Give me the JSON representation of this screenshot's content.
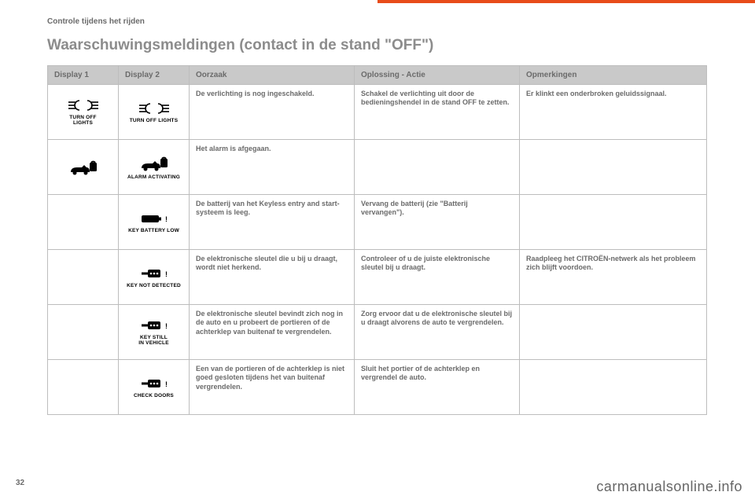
{
  "section_label": "Controle tijdens het rijden",
  "title": "Waarschuwingsmeldingen (contact in de stand \"OFF\")",
  "columns": [
    "Display 1",
    "Display 2",
    "Oorzaak",
    "Oplossing - Actie",
    "Opmerkingen"
  ],
  "page_number": "32",
  "watermark": "carmanualsonline.info",
  "rows": [
    {
      "d1": {
        "icon": "lights",
        "label": "TURN OFF\nLIGHTS"
      },
      "d2": {
        "icon": "lights",
        "label": "TURN OFF LIGHTS"
      },
      "cause": "De verlichting is nog ingeschakeld.",
      "solution": "Schakel de verlichting uit door de bedieningshendel in de stand OFF te zetten.",
      "remarks": "Er klinkt een onderbroken geluidssignaal."
    },
    {
      "d1": {
        "icon": "alarm",
        "label": ""
      },
      "d2": {
        "icon": "alarm",
        "label": "ALARM ACTIVATING"
      },
      "cause": "Het alarm is afgegaan.",
      "solution": "",
      "remarks": ""
    },
    {
      "d1": null,
      "d2": {
        "icon": "keybatt",
        "label": "KEY BATTERY LOW"
      },
      "cause": "De batterij van het Keyless entry and start-systeem is leeg.",
      "solution": "Vervang de batterij (zie \"Batterij vervangen\").",
      "remarks": ""
    },
    {
      "d1": null,
      "d2": {
        "icon": "keyfob",
        "label": "KEY NOT DETECTED"
      },
      "cause": "De elektronische sleutel die u bij u draagt, wordt niet herkend.",
      "solution": "Controleer of u de juiste elektronische sleutel bij u draagt.",
      "remarks": "Raadpleeg het CITROËN-netwerk als het probleem zich blijft voordoen."
    },
    {
      "d1": null,
      "d2": {
        "icon": "keyfob",
        "label": "KEY STILL\nIN VEHICLE"
      },
      "cause": "De elektronische sleutel bevindt zich nog in de auto en u probeert de portieren of de achterklep van buitenaf te vergrendelen.",
      "solution": "Zorg ervoor dat u de elektronische sleutel bij u draagt alvorens de auto te vergrendelen.",
      "remarks": ""
    },
    {
      "d1": null,
      "d2": {
        "icon": "keyfob",
        "label": "CHECK DOORS"
      },
      "cause": "Een van de portieren of de achterklep is niet goed gesloten tijdens het van buitenaf vergrendelen.",
      "solution": "Sluit het portier of de achterklep en vergrendel de auto.",
      "remarks": ""
    }
  ]
}
